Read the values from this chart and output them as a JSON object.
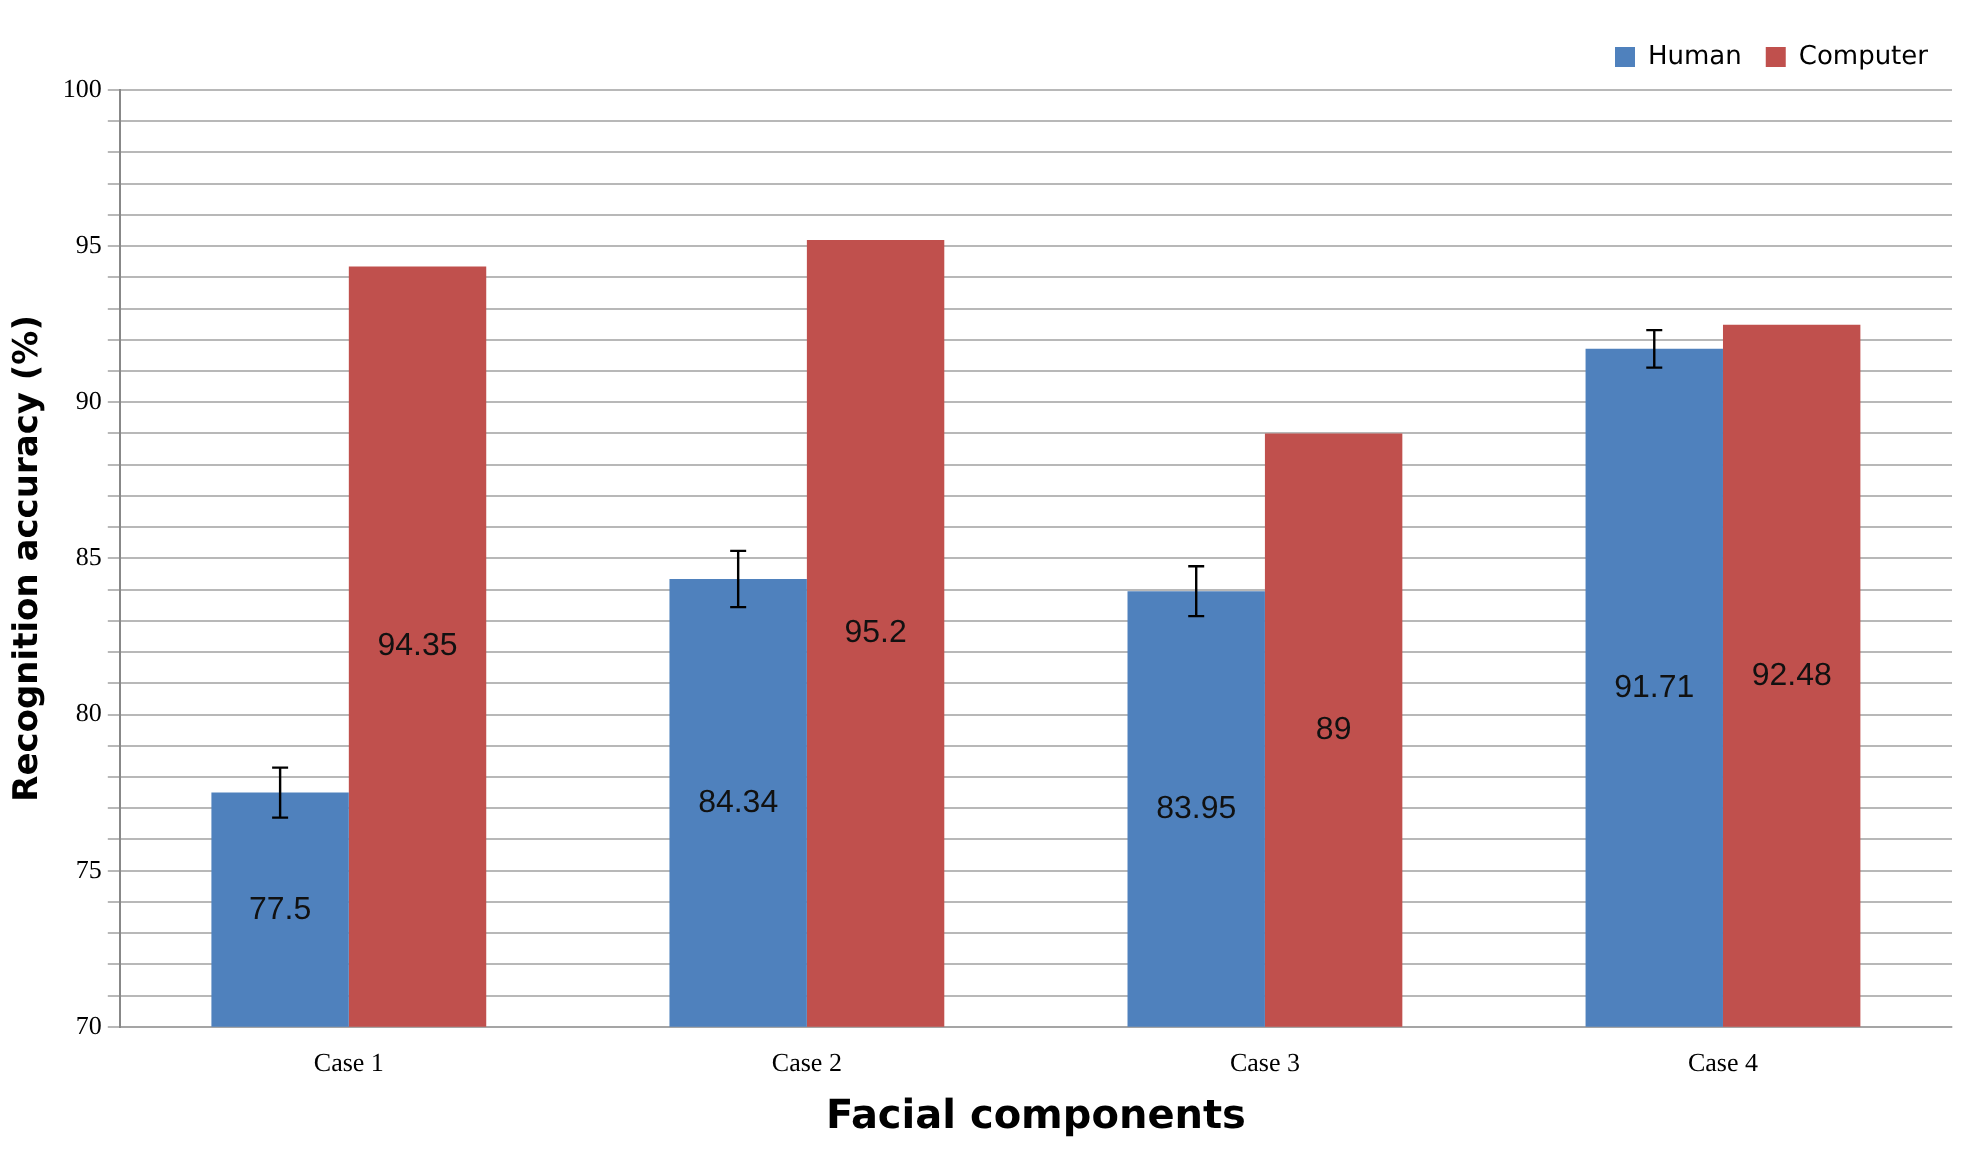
{
  "chart_data": {
    "type": "bar",
    "xlabel": "Facial components",
    "ylabel": "Recognition accuracy (%)",
    "categories": [
      "Case 1",
      "Case 2",
      "Case 3",
      "Case 4"
    ],
    "series": [
      {
        "name": "Human",
        "color": "#4f81bd",
        "values": [
          77.5,
          84.34,
          83.95,
          91.71
        ],
        "errors": [
          0.8,
          0.9,
          0.8,
          0.6
        ]
      },
      {
        "name": "Computer",
        "color": "#c0504d",
        "values": [
          94.35,
          95.2,
          89,
          92.48
        ]
      }
    ],
    "ylim": [
      70,
      100
    ],
    "yticks": [
      70,
      {
        "value": 71,
        "label": null
      },
      {
        "value": 72,
        "label": null
      },
      {
        "value": 73,
        "label": null
      },
      {
        "value": 74,
        "label": null
      },
      75,
      {
        "value": 76,
        "label": null
      },
      {
        "value": 77,
        "label": null
      },
      {
        "value": 78,
        "label": null
      },
      {
        "value": 79,
        "label": null
      },
      80,
      {
        "value": 81,
        "label": null
      },
      {
        "value": 82,
        "label": null
      },
      {
        "value": 83,
        "label": null
      },
      {
        "value": 84,
        "label": null
      },
      85,
      {
        "value": 86,
        "label": null
      },
      {
        "value": 87,
        "label": null
      },
      {
        "value": 88,
        "label": null
      },
      {
        "value": 89,
        "label": null
      },
      90,
      {
        "value": 91,
        "label": null
      },
      {
        "value": 92,
        "label": null
      },
      {
        "value": 93,
        "label": null
      },
      {
        "value": 94,
        "label": null
      },
      95,
      {
        "value": 96,
        "label": null
      },
      {
        "value": 97,
        "label": null
      },
      {
        "value": 98,
        "label": null
      },
      {
        "value": 99,
        "label": null
      },
      100
    ],
    "grid": "y",
    "legend": "top right",
    "data_labels": true
  }
}
